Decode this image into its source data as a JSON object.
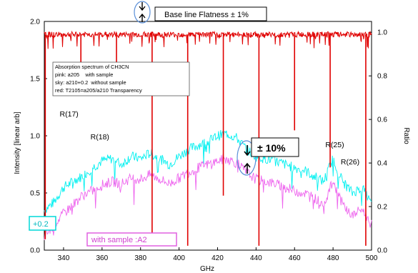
{
  "chart_data": {
    "type": "line",
    "xlabel": "GHz",
    "ylabel_left": "Intensity [linear arb]",
    "ylabel_right": "Ratio",
    "xlim": [
      330,
      500
    ],
    "ylim_left": [
      0,
      2.0
    ],
    "ylim_right": [
      0,
      1.05
    ],
    "x_ticks": [
      340,
      360,
      380,
      400,
      420,
      440,
      460,
      480,
      500
    ],
    "y_ticks_left": [
      0.0,
      0.5,
      1.0,
      1.5,
      2.0
    ],
    "y_ticks_right": [
      0.0,
      0.2,
      0.4,
      0.6,
      0.8,
      1.0
    ],
    "colors": {
      "sky": "#00f0f0",
      "pink": "#ee66ee",
      "red": "#e00000",
      "ellipse": "#5a8fd8"
    },
    "series": [
      {
        "name": "sky: a210+0.2 without sample",
        "axis": "left",
        "x": [
          330,
          335,
          340,
          345,
          350,
          355,
          360,
          365,
          370,
          375,
          380,
          385,
          390,
          395,
          400,
          405,
          410,
          415,
          420,
          425,
          430,
          435,
          440,
          445,
          450,
          455,
          460,
          465,
          470,
          475,
          480,
          485,
          490,
          495,
          500
        ],
        "y": [
          0.35,
          0.42,
          0.55,
          0.6,
          0.65,
          0.72,
          0.78,
          0.8,
          0.75,
          0.82,
          0.8,
          0.85,
          0.8,
          0.75,
          0.82,
          0.88,
          0.92,
          0.95,
          1.0,
          1.02,
          0.98,
          0.88,
          0.82,
          0.8,
          0.78,
          0.75,
          0.72,
          0.7,
          0.65,
          0.6,
          0.8,
          0.6,
          0.5,
          0.55,
          0.4
        ]
      },
      {
        "name": "pink: a205 with sample",
        "axis": "left",
        "x": [
          330,
          335,
          340,
          345,
          350,
          355,
          360,
          365,
          370,
          375,
          380,
          385,
          390,
          395,
          400,
          405,
          410,
          415,
          420,
          425,
          430,
          435,
          440,
          445,
          450,
          455,
          460,
          465,
          470,
          475,
          480,
          485,
          490,
          495,
          500
        ],
        "y": [
          0.12,
          0.22,
          0.32,
          0.4,
          0.48,
          0.52,
          0.57,
          0.6,
          0.58,
          0.63,
          0.62,
          0.66,
          0.62,
          0.58,
          0.63,
          0.68,
          0.72,
          0.75,
          0.78,
          0.8,
          0.76,
          0.68,
          0.62,
          0.6,
          0.58,
          0.55,
          0.52,
          0.5,
          0.46,
          0.4,
          0.6,
          0.4,
          0.3,
          0.36,
          0.22
        ]
      },
      {
        "name": "red: T2105=a205/a210 Transparency",
        "axis": "right",
        "baseline": 0.99,
        "dips": [
          {
            "x": 330.5,
            "y": 0.05
          },
          {
            "x": 349,
            "y": 0.8
          },
          {
            "x": 367.5,
            "y": 0.82
          },
          {
            "x": 386,
            "y": 0.02
          },
          {
            "x": 404.5,
            "y": 0.02
          },
          {
            "x": 423,
            "y": 0.25
          },
          {
            "x": 441.5,
            "y": 0.02
          },
          {
            "x": 460,
            "y": 0.55
          },
          {
            "x": 478.5,
            "y": 0.38
          },
          {
            "x": 497,
            "y": 0.02
          }
        ]
      }
    ],
    "legend": {
      "placement": "top-left",
      "lines": [
        "Absorption spectrum of CH3CN",
        "pink: a205    with sample",
        "sky: a210+0.2  without sample",
        "red: T2105=a205/a210 Transparency"
      ]
    },
    "annotations": {
      "baseline_flatness": "Base line Flatness ± 1%",
      "ten_percent": "± 10%",
      "plus_offset": "+0.2",
      "with_sample": "with sample :A2",
      "labels": [
        {
          "text": "R(17)",
          "x": 338,
          "y": 1.17
        },
        {
          "text": "R(18)",
          "x": 354,
          "y": 0.97
        },
        {
          "text": "R(25)",
          "x": 476,
          "y": 0.9
        },
        {
          "text": "R(26)",
          "x": 484,
          "y": 0.75
        }
      ]
    }
  }
}
